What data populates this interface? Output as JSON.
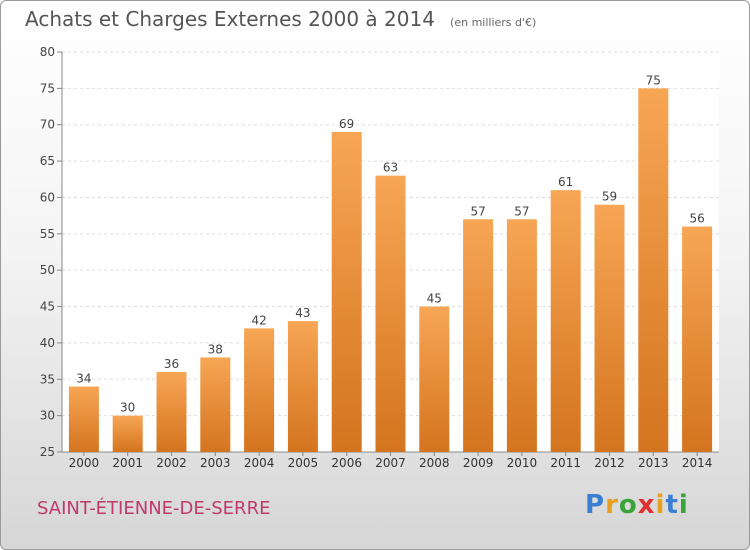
{
  "header": {
    "title": "Achats et Charges Externes 2000 à 2014",
    "unit": "(en milliers d'€)"
  },
  "footer": {
    "place": "SAINT-ÉTIENNE-DE-SERRE",
    "logo_letters": [
      {
        "ch": "P",
        "color": "#3b7fd4"
      },
      {
        "ch": "r",
        "color": "#e8a020"
      },
      {
        "ch": "o",
        "color": "#3aa43a"
      },
      {
        "ch": "x",
        "color": "#e03030"
      },
      {
        "ch": "i",
        "color": "#e8a020"
      },
      {
        "ch": "t",
        "color": "#3b7fd4"
      },
      {
        "ch": "i",
        "color": "#3aa43a"
      }
    ]
  },
  "chart_data": {
    "type": "bar",
    "title": "Achats et Charges Externes 2000 à 2014",
    "subtitle": "(en milliers d'€)",
    "categories": [
      "2000",
      "2001",
      "2002",
      "2003",
      "2004",
      "2005",
      "2006",
      "2007",
      "2008",
      "2009",
      "2010",
      "2011",
      "2012",
      "2013",
      "2014"
    ],
    "values": [
      34,
      30,
      36,
      38,
      42,
      43,
      69,
      63,
      45,
      57,
      57,
      61,
      59,
      75,
      56
    ],
    "ylim": [
      25,
      80
    ],
    "yticks": [
      25,
      30,
      35,
      40,
      45,
      50,
      55,
      60,
      65,
      70,
      75,
      80
    ],
    "grid": true,
    "bar_color_top": "#f7a655",
    "bar_color_bottom": "#d4741f",
    "plot_background": "#ffffff"
  }
}
